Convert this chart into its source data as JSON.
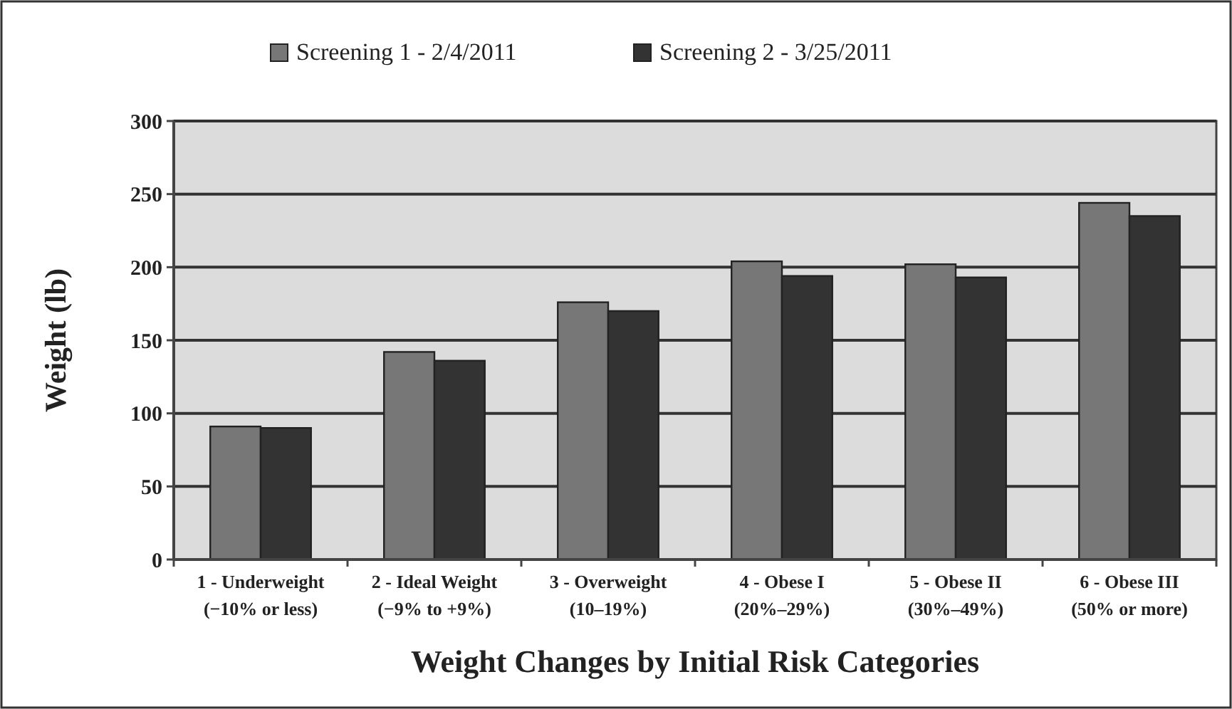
{
  "chart_data": {
    "type": "bar",
    "xlabel": "Weight Changes by Initial Risk Categories",
    "ylabel": "Weight (lb)",
    "categories": [
      "1 - Underweight\n(−10% or less)",
      "2 - Ideal Weight\n(−9% to +9%)",
      "3 - Overweight\n(10–19%)",
      "4 - Obese I\n(20%–29%)",
      "5 - Obese II\n(30%–49%)",
      "6 - Obese III\n(50% or more)"
    ],
    "series": [
      {
        "name": "Screening 1 - 2/4/2011",
        "color": "#777777",
        "values": [
          91,
          142,
          176,
          204,
          202,
          244
        ]
      },
      {
        "name": "Screening 2 - 3/25/2011",
        "color": "#333333",
        "values": [
          90,
          136,
          170,
          194,
          193,
          235
        ]
      }
    ],
    "ylim": [
      0,
      300
    ],
    "yticks": [
      0,
      50,
      100,
      150,
      200,
      250,
      300
    ],
    "grid": "y",
    "legend": "top"
  }
}
